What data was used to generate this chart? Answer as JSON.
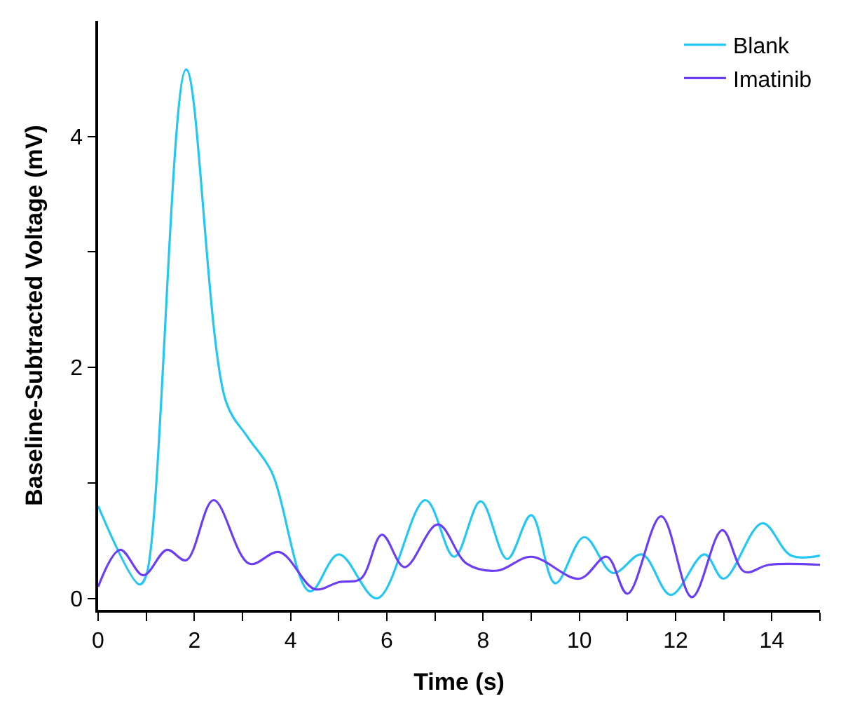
{
  "chart_data": {
    "type": "line",
    "xlabel": "Time (s)",
    "ylabel": "Baseline-Subtracted Voltage (mV)",
    "xlim": [
      0,
      15
    ],
    "ylim": [
      -0.1,
      5
    ],
    "xticks": [
      0,
      {
        "value": 1,
        "label": null
      },
      2,
      {
        "value": 3,
        "label": null
      },
      4,
      {
        "value": 5,
        "label": null
      },
      6,
      {
        "value": 7,
        "label": null
      },
      8,
      {
        "value": 9,
        "label": null
      },
      10,
      {
        "value": 11,
        "label": null
      },
      12,
      {
        "value": 13,
        "label": null
      },
      14,
      {
        "value": 15,
        "label": null
      }
    ],
    "yticks": [
      0,
      {
        "value": 1,
        "label": null
      },
      2,
      {
        "value": 3,
        "label": null
      },
      4
    ],
    "legend": "top right",
    "marker": "none",
    "line_style": "solid",
    "series": [
      {
        "name": "Blank",
        "color": "#22c7f5",
        "x": [
          0,
          0.86,
          1.0,
          1.83,
          2.66,
          3.1,
          3.6,
          4.4,
          5.0,
          5.8,
          6.8,
          7.4,
          7.95,
          8.5,
          9.0,
          9.5,
          10.1,
          10.7,
          11.3,
          11.9,
          12.6,
          13.0,
          13.8,
          14.4,
          15
        ],
        "values": [
          0.8,
          0.12,
          0.2,
          4.58,
          1.7,
          1.4,
          1.1,
          0.06,
          0.38,
          0.0,
          0.85,
          0.36,
          0.84,
          0.34,
          0.72,
          0.13,
          0.53,
          0.22,
          0.38,
          0.03,
          0.38,
          0.17,
          0.65,
          0.37,
          0.37
        ]
      },
      {
        "name": "Imatinib",
        "color": "#6b3df5",
        "x": [
          0,
          0.46,
          0.94,
          1.43,
          1.83,
          2.4,
          3.14,
          3.77,
          4.5,
          5.0,
          5.46,
          5.9,
          6.37,
          7.06,
          7.66,
          8.3,
          9.0,
          10.0,
          10.57,
          11.0,
          11.7,
          12.34,
          12.97,
          13.43,
          13.94,
          15
        ],
        "values": [
          0.1,
          0.42,
          0.2,
          0.42,
          0.33,
          0.85,
          0.3,
          0.4,
          0.08,
          0.14,
          0.17,
          0.55,
          0.27,
          0.64,
          0.3,
          0.24,
          0.36,
          0.17,
          0.36,
          0.04,
          0.71,
          0.01,
          0.59,
          0.23,
          0.29,
          0.29
        ]
      }
    ]
  }
}
